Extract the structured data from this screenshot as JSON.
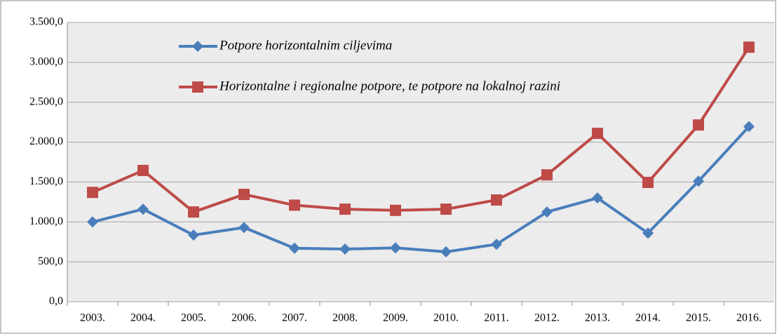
{
  "chart_data": {
    "type": "line",
    "categories": [
      "2003.",
      "2004.",
      "2005.",
      "2006.",
      "2007.",
      "2008.",
      "2009.",
      "2010.",
      "2011.",
      "2012.",
      "2013.",
      "2014.",
      "2015.",
      "2016."
    ],
    "series": [
      {
        "name": "Potpore horizontalnim ciljevima",
        "color": "#4a7ebb",
        "marker": "diamond",
        "values": [
          1000,
          1160,
          835,
          930,
          670,
          660,
          675,
          625,
          720,
          1125,
          1300,
          860,
          1510,
          2195
        ]
      },
      {
        "name": "Horizontalne i regionalne potpore, te potpore na lokalnoj razini",
        "color": "#be4b48",
        "marker": "square",
        "values": [
          1370,
          1645,
          1125,
          1345,
          1210,
          1160,
          1145,
          1160,
          1275,
          1590,
          2110,
          1495,
          2215,
          3190
        ]
      }
    ],
    "ylim": [
      0,
      3500
    ],
    "yticks": [
      {
        "value": 0,
        "label": "0,0"
      },
      {
        "value": 500,
        "label": "500,0"
      },
      {
        "value": 1000,
        "label": "1.000,0"
      },
      {
        "value": 1500,
        "label": "1.500,0"
      },
      {
        "value": 2000,
        "label": "2.000,0"
      },
      {
        "value": 2500,
        "label": "2.500,0"
      },
      {
        "value": 3000,
        "label": "3.000,0"
      },
      {
        "value": 3500,
        "label": "3.500,0"
      }
    ],
    "grid": true,
    "legend": "top-left"
  }
}
